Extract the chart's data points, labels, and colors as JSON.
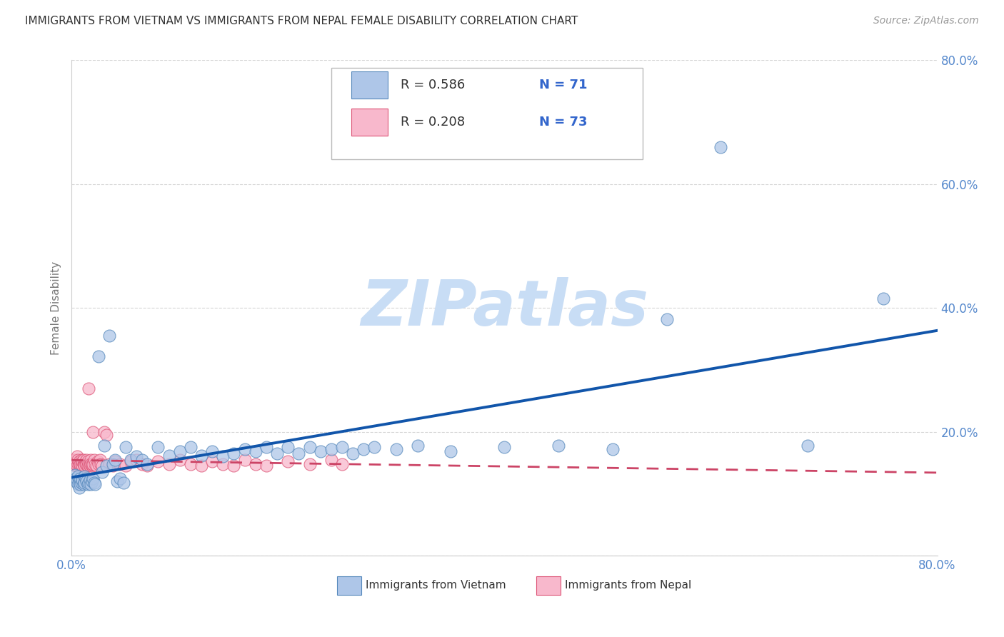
{
  "title": "IMMIGRANTS FROM VIETNAM VS IMMIGRANTS FROM NEPAL FEMALE DISABILITY CORRELATION CHART",
  "source": "Source: ZipAtlas.com",
  "ylabel": "Female Disability",
  "xlim": [
    0.0,
    0.8
  ],
  "ylim": [
    0.0,
    0.8
  ],
  "series": [
    {
      "name": "Immigrants from Vietnam",
      "color": "#aec6e8",
      "edge_color": "#5588bb",
      "R": 0.586,
      "N": 71,
      "trend_color": "#1155aa",
      "trend_style": "solid",
      "x": [
        0.003,
        0.004,
        0.005,
        0.005,
        0.006,
        0.006,
        0.007,
        0.007,
        0.008,
        0.008,
        0.009,
        0.01,
        0.011,
        0.012,
        0.012,
        0.013,
        0.014,
        0.015,
        0.016,
        0.017,
        0.018,
        0.019,
        0.02,
        0.021,
        0.022,
        0.025,
        0.028,
        0.03,
        0.032,
        0.035,
        0.038,
        0.04,
        0.042,
        0.045,
        0.048,
        0.05,
        0.055,
        0.06,
        0.065,
        0.07,
        0.08,
        0.09,
        0.1,
        0.11,
        0.12,
        0.13,
        0.14,
        0.15,
        0.16,
        0.17,
        0.18,
        0.19,
        0.2,
        0.21,
        0.22,
        0.23,
        0.24,
        0.25,
        0.26,
        0.27,
        0.28,
        0.3,
        0.32,
        0.35,
        0.4,
        0.45,
        0.5,
        0.55,
        0.6,
        0.68,
        0.75
      ],
      "y": [
        0.13,
        0.125,
        0.118,
        0.122,
        0.115,
        0.128,
        0.11,
        0.12,
        0.115,
        0.125,
        0.118,
        0.122,
        0.115,
        0.128,
        0.118,
        0.125,
        0.12,
        0.115,
        0.118,
        0.122,
        0.115,
        0.12,
        0.125,
        0.118,
        0.115,
        0.322,
        0.135,
        0.178,
        0.145,
        0.355,
        0.148,
        0.155,
        0.12,
        0.125,
        0.118,
        0.175,
        0.155,
        0.16,
        0.155,
        0.148,
        0.175,
        0.162,
        0.168,
        0.175,
        0.162,
        0.168,
        0.16,
        0.165,
        0.172,
        0.168,
        0.175,
        0.165,
        0.175,
        0.165,
        0.175,
        0.168,
        0.172,
        0.175,
        0.165,
        0.172,
        0.175,
        0.172,
        0.178,
        0.168,
        0.175,
        0.178,
        0.172,
        0.382,
        0.66,
        0.178,
        0.415
      ]
    },
    {
      "name": "Immigrants from Nepal",
      "color": "#f8b8cc",
      "edge_color": "#dd5577",
      "R": 0.208,
      "N": 73,
      "trend_color": "#cc4466",
      "trend_style": "dashed",
      "x": [
        0.001,
        0.002,
        0.002,
        0.003,
        0.003,
        0.004,
        0.004,
        0.005,
        0.005,
        0.006,
        0.006,
        0.007,
        0.007,
        0.008,
        0.008,
        0.009,
        0.009,
        0.01,
        0.01,
        0.011,
        0.011,
        0.012,
        0.012,
        0.013,
        0.013,
        0.014,
        0.014,
        0.015,
        0.015,
        0.016,
        0.016,
        0.017,
        0.017,
        0.018,
        0.018,
        0.019,
        0.019,
        0.02,
        0.02,
        0.021,
        0.022,
        0.023,
        0.024,
        0.025,
        0.026,
        0.027,
        0.028,
        0.03,
        0.032,
        0.035,
        0.038,
        0.04,
        0.045,
        0.05,
        0.055,
        0.06,
        0.065,
        0.07,
        0.08,
        0.09,
        0.1,
        0.11,
        0.12,
        0.13,
        0.14,
        0.15,
        0.16,
        0.17,
        0.18,
        0.2,
        0.22,
        0.24,
        0.25
      ],
      "y": [
        0.155,
        0.148,
        0.152,
        0.145,
        0.155,
        0.148,
        0.152,
        0.145,
        0.16,
        0.148,
        0.155,
        0.148,
        0.152,
        0.145,
        0.148,
        0.155,
        0.148,
        0.145,
        0.152,
        0.148,
        0.155,
        0.148,
        0.145,
        0.152,
        0.148,
        0.155,
        0.148,
        0.145,
        0.152,
        0.148,
        0.27,
        0.148,
        0.145,
        0.155,
        0.148,
        0.145,
        0.148,
        0.2,
        0.148,
        0.155,
        0.148,
        0.145,
        0.152,
        0.148,
        0.155,
        0.148,
        0.145,
        0.2,
        0.195,
        0.148,
        0.145,
        0.152,
        0.148,
        0.145,
        0.152,
        0.155,
        0.148,
        0.145,
        0.152,
        0.148,
        0.155,
        0.148,
        0.145,
        0.152,
        0.148,
        0.145,
        0.155,
        0.148,
        0.145,
        0.152,
        0.148,
        0.155,
        0.148
      ]
    }
  ],
  "watermark_text": "ZIPatlas",
  "watermark_color": "#c8ddf5",
  "background_color": "#ffffff",
  "grid_color": "#cccccc",
  "title_color": "#333333",
  "tick_color": "#5588cc",
  "axis_label_color": "#777777",
  "legend_R_color": "#3366cc",
  "legend_N_color": "#3366cc",
  "source_color": "#999999"
}
